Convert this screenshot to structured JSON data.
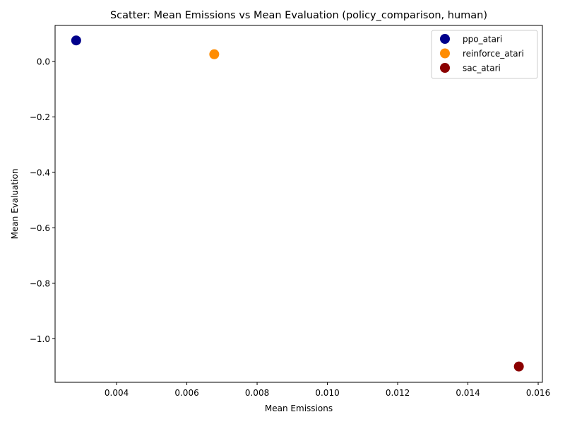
{
  "chart_data": {
    "type": "scatter",
    "title": "Scatter: Mean Emissions vs Mean Evaluation (policy_comparison, human)",
    "xlabel": "Mean Emissions",
    "ylabel": "Mean Evaluation",
    "xlim": [
      0.00225,
      0.01612
    ],
    "ylim": [
      -1.157,
      0.13
    ],
    "xticks": [
      0.004,
      0.006,
      0.008,
      0.01,
      0.012,
      0.014,
      0.016
    ],
    "xtick_labels": [
      "0.004",
      "0.006",
      "0.008",
      "0.010",
      "0.012",
      "0.014",
      "0.016"
    ],
    "yticks": [
      0.0,
      -0.2,
      -0.4,
      -0.6,
      -0.8,
      -1.0
    ],
    "ytick_labels": [
      "0.0",
      "−0.2",
      "−0.4",
      "−0.6",
      "−0.8",
      "−1.0"
    ],
    "grid": false,
    "legend_position": "top-right",
    "series": [
      {
        "name": "ppo_atari",
        "color": "#00008b",
        "points": [
          {
            "x": 0.00285,
            "y": 0.076
          }
        ]
      },
      {
        "name": "reinforce_atari",
        "color": "#ff8c00",
        "points": [
          {
            "x": 0.00678,
            "y": 0.026
          }
        ]
      },
      {
        "name": "sac_atari",
        "color": "#8b0000",
        "points": [
          {
            "x": 0.01545,
            "y": -1.1
          }
        ]
      }
    ]
  }
}
